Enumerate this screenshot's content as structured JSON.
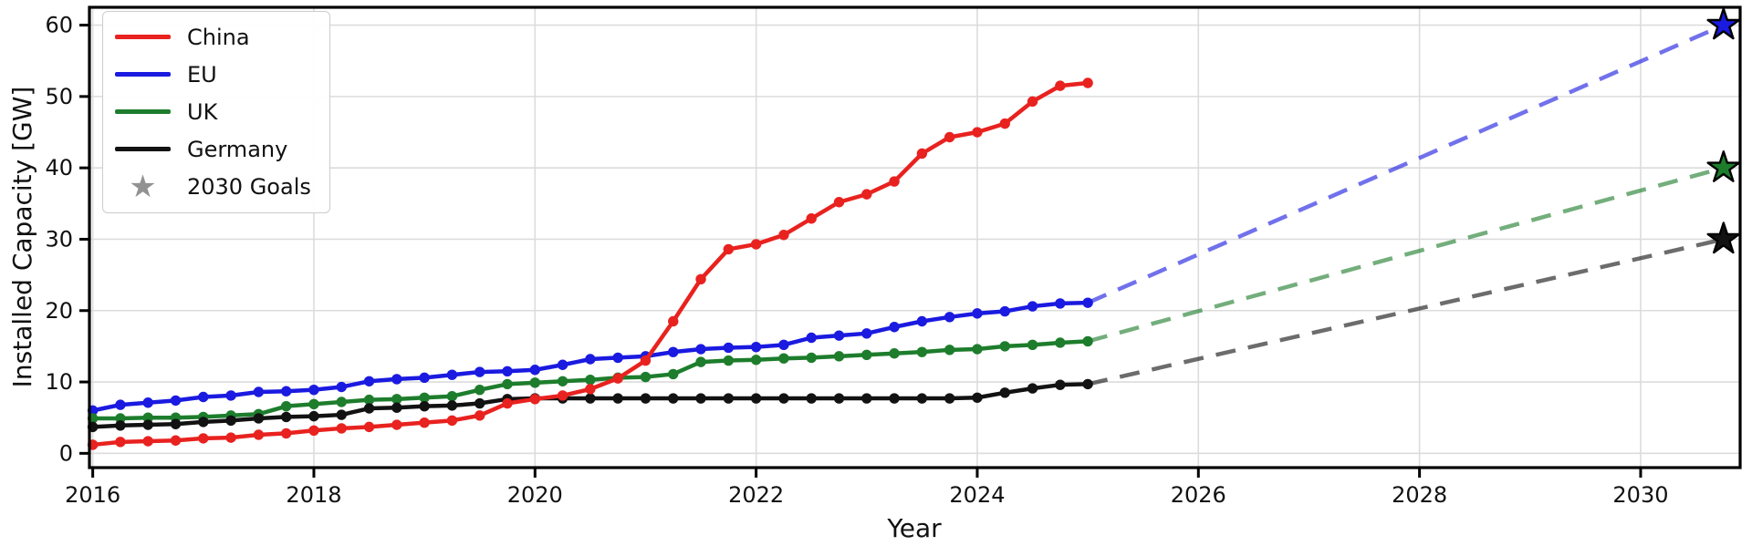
{
  "figure": {
    "xlabel": "Year",
    "ylabel": "Installed Capacity [GW]"
  },
  "chart_data": {
    "type": "line",
    "title": "",
    "xlabel": "Year",
    "ylabel": "Installed Capacity [GW]",
    "xlim": [
      2015.97,
      2030.9
    ],
    "ylim": [
      -2,
      62.5
    ],
    "xticks": [
      2016,
      2018,
      2020,
      2022,
      2024,
      2026,
      2028,
      2030
    ],
    "yticks": [
      0,
      10,
      20,
      30,
      40,
      50,
      60
    ],
    "grid": true,
    "grid_color": "#dcdcdc",
    "legend_position": "upper left",
    "x": [
      2016.0,
      2016.25,
      2016.5,
      2016.75,
      2017.0,
      2017.25,
      2017.5,
      2017.75,
      2018.0,
      2018.25,
      2018.5,
      2018.75,
      2019.0,
      2019.25,
      2019.5,
      2019.75,
      2020.0,
      2020.25,
      2020.5,
      2020.75,
      2021.0,
      2021.25,
      2021.5,
      2021.75,
      2022.0,
      2022.25,
      2022.5,
      2022.75,
      2023.0,
      2023.25,
      2023.5,
      2023.75,
      2024.0,
      2024.25,
      2024.5,
      2024.75,
      2025.0
    ],
    "series": [
      {
        "name": "China",
        "color": "#e8221f",
        "values": [
          1.2,
          1.6,
          1.7,
          1.8,
          2.1,
          2.2,
          2.6,
          2.8,
          3.2,
          3.5,
          3.7,
          4.0,
          4.3,
          4.6,
          5.3,
          7.0,
          7.6,
          8.1,
          9.0,
          10.5,
          13.0,
          18.5,
          24.4,
          28.6,
          29.3,
          30.6,
          32.9,
          35.2,
          36.3,
          38.1,
          42.0,
          44.3,
          45.0,
          46.2,
          49.3,
          51.5,
          51.9
        ]
      },
      {
        "name": "EU",
        "color": "#1a1ae0",
        "values": [
          6.0,
          6.8,
          7.1,
          7.4,
          7.9,
          8.1,
          8.6,
          8.7,
          8.9,
          9.3,
          10.1,
          10.4,
          10.6,
          11.0,
          11.4,
          11.5,
          11.7,
          12.4,
          13.2,
          13.4,
          13.6,
          14.2,
          14.6,
          14.8,
          14.9,
          15.2,
          16.2,
          16.5,
          16.8,
          17.7,
          18.5,
          19.1,
          19.6,
          19.9,
          20.6,
          21.0,
          21.1
        ]
      },
      {
        "name": "UK",
        "color": "#1d7d2c",
        "values": [
          4.9,
          4.9,
          5.0,
          5.0,
          5.1,
          5.3,
          5.5,
          6.6,
          6.9,
          7.2,
          7.5,
          7.6,
          7.8,
          8.0,
          8.9,
          9.7,
          9.9,
          10.1,
          10.3,
          10.6,
          10.7,
          11.1,
          12.8,
          13.0,
          13.1,
          13.3,
          13.4,
          13.6,
          13.8,
          14.0,
          14.2,
          14.5,
          14.6,
          15.0,
          15.2,
          15.5,
          15.7
        ]
      },
      {
        "name": "Germany",
        "color": "#121212",
        "values": [
          3.7,
          3.9,
          4.0,
          4.1,
          4.4,
          4.6,
          4.9,
          5.1,
          5.2,
          5.4,
          6.3,
          6.4,
          6.6,
          6.7,
          7.0,
          7.6,
          7.7,
          7.7,
          7.7,
          7.7,
          7.7,
          7.7,
          7.7,
          7.7,
          7.7,
          7.7,
          7.7,
          7.7,
          7.7,
          7.7,
          7.7,
          7.7,
          7.8,
          8.5,
          9.1,
          9.6,
          9.7
        ]
      }
    ],
    "goals": {
      "label": "2030 Goals",
      "marker": "star",
      "legend_marker_color": "#929292",
      "x": 2030.75,
      "items": [
        {
          "series": "EU",
          "value": 60
        },
        {
          "series": "UK",
          "value": 40
        },
        {
          "series": "Germany",
          "value": 30
        }
      ]
    }
  },
  "legend": {
    "items": [
      {
        "label": "China"
      },
      {
        "label": "EU"
      },
      {
        "label": "UK"
      },
      {
        "label": "Germany"
      },
      {
        "label": "2030 Goals"
      }
    ]
  }
}
